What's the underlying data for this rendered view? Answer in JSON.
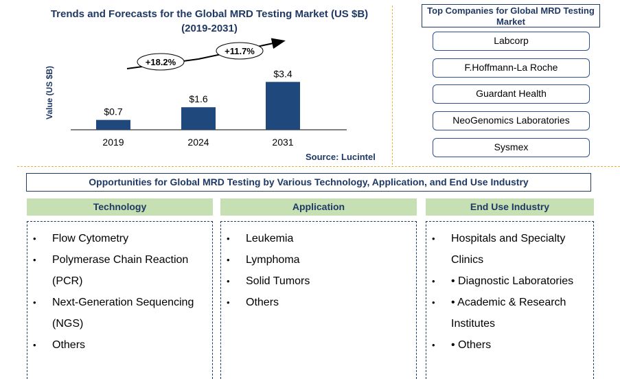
{
  "chart_data": {
    "type": "bar",
    "title": "Trends and Forecasts for the Global MRD Testing Market (US $B) (2019-2031)",
    "title_line1": "Trends and Forecasts for the Global MRD Testing Market (US $B)",
    "title_line2": "(2019-2031)",
    "categories": [
      "2019",
      "2024",
      "2031"
    ],
    "values": [
      0.7,
      1.6,
      3.4
    ],
    "value_labels": [
      "$0.7",
      "$1.6",
      "$3.4"
    ],
    "ylabel": "Value (US $B)",
    "xlabel": "",
    "ylim": [
      0,
      4
    ],
    "bar_color": "#1F497D",
    "growth_annotations": [
      {
        "from": "2019",
        "to": "2024",
        "label": "+18.2%"
      },
      {
        "from": "2024",
        "to": "2031",
        "label": "+11.7%"
      }
    ],
    "source": "Source: Lucintel"
  },
  "companies": {
    "title": "Top Companies for Global MRD Testing  Market",
    "items": [
      "Labcorp",
      "F.Hoffmann-La Roche",
      "Guardant Health",
      "NeoGenomics Laboratories",
      "Sysmex"
    ]
  },
  "opportunities": {
    "banner": "Opportunities for Global MRD Testing by Various Technology, Application, and End Use Industry",
    "columns": [
      {
        "heading": "Technology",
        "items": [
          "Flow Cytometry",
          "Polymerase Chain Reaction (PCR)",
          "Next-Generation Sequencing (NGS)",
          "Others"
        ]
      },
      {
        "heading": "Application",
        "items": [
          "Leukemia",
          "Lymphoma",
          "Solid Tumors",
          "Others"
        ]
      },
      {
        "heading": "End Use Industry",
        "items": [
          "Hospitals and Specialty Clinics",
          "• Diagnostic Laboratories",
          "• Academic & Research Institutes",
          "• Others"
        ]
      }
    ]
  },
  "colors": {
    "navy": "#1F3864",
    "bar": "#1F497D",
    "green_header": "#C6E0B4",
    "gold_divider": "#E3B53A"
  }
}
